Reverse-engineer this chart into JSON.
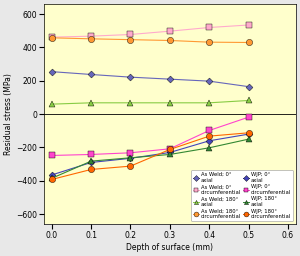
{
  "x": [
    0,
    0.1,
    0.2,
    0.3,
    0.4,
    0.5
  ],
  "series": [
    {
      "name": "As Weld; 0° axial",
      "values": [
        255,
        238,
        222,
        210,
        198,
        165
      ],
      "color": "#6666bb",
      "marker": "D",
      "markersize": 3.5,
      "linestyle": "-",
      "linewidth": 0.8
    },
    {
      "name": "As Weld; 0° circumferential",
      "values": [
        462,
        468,
        478,
        498,
        520,
        535
      ],
      "color": "#ffaacc",
      "marker": "s",
      "markersize": 4.5,
      "linestyle": "-",
      "linewidth": 0.8
    },
    {
      "name": "As Weld; 180° axial",
      "values": [
        60,
        68,
        68,
        68,
        68,
        82
      ],
      "color": "#88cc44",
      "marker": "^",
      "markersize": 4.5,
      "linestyle": "-",
      "linewidth": 0.8
    },
    {
      "name": "As Weld; 180° circumferential",
      "values": [
        458,
        452,
        447,
        442,
        432,
        430
      ],
      "color": "#ff9933",
      "marker": "o",
      "markersize": 4.5,
      "linestyle": "-",
      "linewidth": 0.8
    },
    {
      "name": "WJP; 0° axial",
      "values": [
        -365,
        -290,
        -265,
        -230,
        -160,
        -120
      ],
      "color": "#4444bb",
      "marker": "D",
      "markersize": 3.5,
      "linestyle": "-",
      "linewidth": 0.8
    },
    {
      "name": "WJP; 0° circumferential",
      "values": [
        -248,
        -242,
        -232,
        -208,
        -98,
        -18
      ],
      "color": "#ff44cc",
      "marker": "s",
      "markersize": 4.5,
      "linestyle": "-",
      "linewidth": 0.8
    },
    {
      "name": "WJP; 180° axial",
      "values": [
        -385,
        -282,
        -262,
        -242,
        -202,
        -150
      ],
      "color": "#338833",
      "marker": "^",
      "markersize": 4.5,
      "linestyle": "-",
      "linewidth": 0.8
    },
    {
      "name": "WJP; 180° circumferential",
      "values": [
        -392,
        -332,
        -312,
        -212,
        -132,
        -112
      ],
      "color": "#ff6600",
      "marker": "o",
      "markersize": 4.5,
      "linestyle": "-",
      "linewidth": 0.8
    }
  ],
  "xlabel": "Depth of surface (mm)",
  "ylabel": "Residual stress (MPa)",
  "xlim": [
    -0.02,
    0.62
  ],
  "ylim": [
    -660,
    660
  ],
  "yticks": [
    -600,
    -400,
    -200,
    0,
    200,
    400,
    600
  ],
  "xticks": [
    0,
    0.1,
    0.2,
    0.3,
    0.4,
    0.5,
    0.6
  ],
  "plot_bg": "#ffffcc",
  "fig_bg": "#e8e8e8",
  "legend_labels_col1": [
    "As Weld; 0°\naxial",
    "As Weld; 180°\naxial",
    "WJP; 0°\naxial",
    "WJP; 180°\naxial"
  ],
  "legend_labels_col2": [
    "As Weld; 0°\ncircumferential",
    "As Weld; 180°\ncircumferential",
    "WJP; 0°\ncircumferential",
    "WJP; 180°\ncircumferential"
  ]
}
